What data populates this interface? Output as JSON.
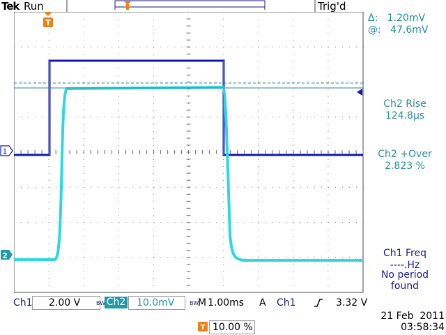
{
  "header": {
    "brand": "Tek",
    "run_state": "Run",
    "trigger_state": "Trig'd"
  },
  "cursor": {
    "delta_symbol": "Δ:",
    "delta_value": "1.20mV",
    "at_symbol": "@:",
    "at_value": "47.6mV"
  },
  "measurements": [
    {
      "label": "Ch2 Rise",
      "value": "124.8µs",
      "color": "#1f8d9a"
    },
    {
      "label": "Ch2 +Over",
      "value": "2.823 %",
      "color": "#1f8d9a"
    },
    {
      "label": "Ch1 Freq",
      "value": "----.Hz",
      "extra1": "No period",
      "extra2": "found",
      "color": "#1a1a99"
    }
  ],
  "markers": {
    "ch1": "1",
    "ch2": "2",
    "trigger": "T"
  },
  "status_bar": {
    "ch1_label": "Ch1",
    "ch1_scale": "2.00 V",
    "bw1": "BW",
    "ch2_label": "Ch2",
    "ch2_scale": "10.0mV",
    "bw2": "BW",
    "timebase_label": "M",
    "timebase": "1.00ms",
    "acq_mode": "A",
    "trig_source": "Ch1",
    "trig_slope_icon": "rising-edge-icon",
    "trig_level": "3.32 V"
  },
  "trigger_position": {
    "icon": "trigger-icon",
    "value": "10.00 %"
  },
  "timestamp": {
    "date": "21 Feb  2011",
    "time": "03:58:34"
  },
  "colors": {
    "ch1": "#1018b0",
    "ch2": "#2fd8e0",
    "grid": "#888888",
    "trigger_marker": "#f07f14",
    "accent_text": "#1f8d9a"
  }
}
